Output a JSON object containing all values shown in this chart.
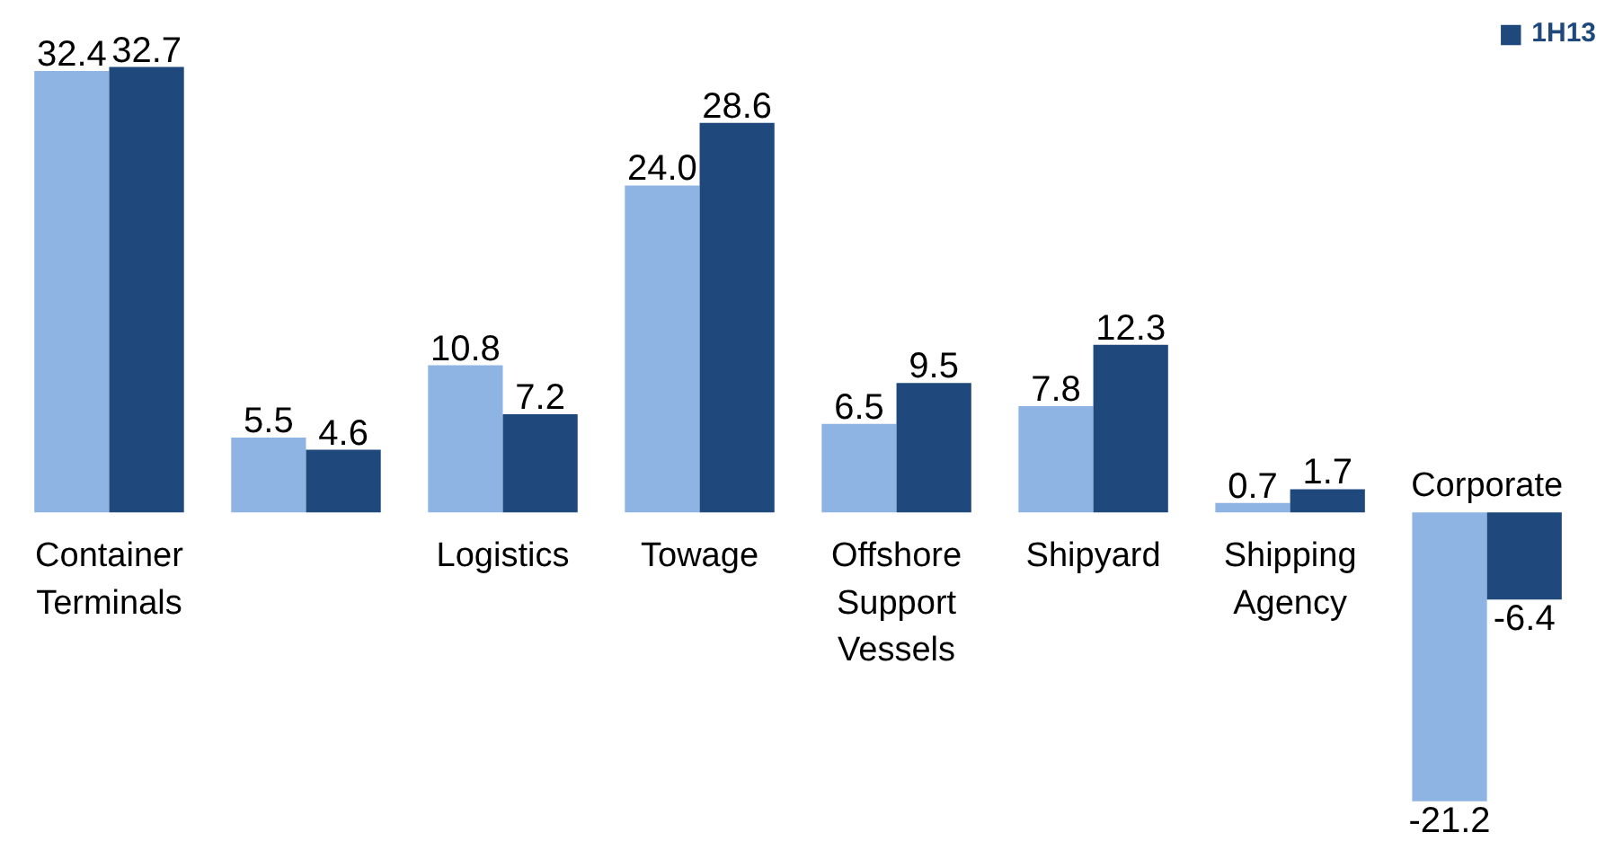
{
  "chart_data": {
    "type": "bar",
    "categories": [
      "Container\nTerminals",
      null,
      "Logistics",
      "Towage",
      "Offshore\nSupport\nVessels",
      "Shipyard",
      "Shipping\nAgency",
      "Corporate"
    ],
    "series": [
      {
        "color": "#8db4e2",
        "values": [
          32.4,
          5.5,
          10.8,
          24.0,
          6.5,
          7.8,
          0.7,
          -21.2
        ],
        "value_labels": [
          "32.4",
          "5.5",
          "10.8",
          "24.0",
          "6.5",
          "7.8",
          "0.7",
          "-21.2"
        ]
      },
      {
        "name": "1H13",
        "color": "#1f497d",
        "values": [
          32.7,
          4.6,
          7.2,
          28.6,
          9.5,
          12.3,
          1.7,
          -6.4
        ],
        "value_labels": [
          "32.7",
          "4.6",
          "7.2",
          "28.6",
          "9.5",
          "12.3",
          "1.7",
          "-6.4"
        ]
      }
    ],
    "legend": "top right",
    "grid": false
  }
}
